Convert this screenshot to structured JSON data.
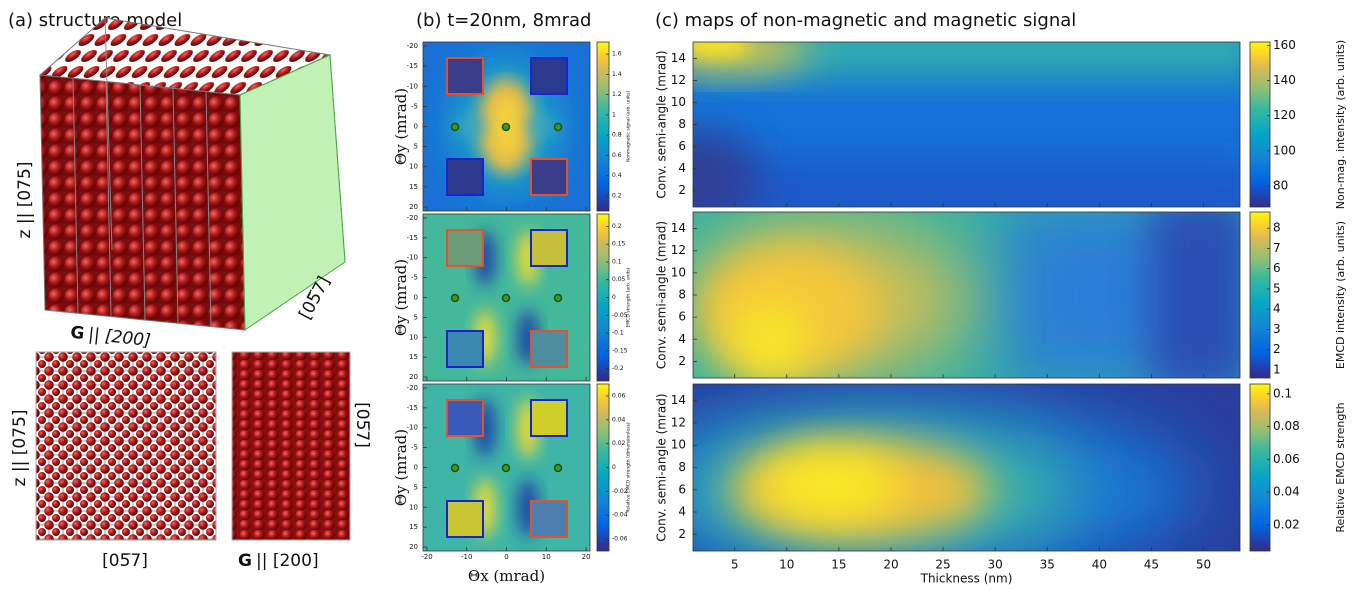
{
  "panel_a": {
    "title": "(a) structure model",
    "cube": {
      "z_label": "z || [075]",
      "g_label_bold": "G",
      "g_label": "|| [200]",
      "face_label": "[05̅7]"
    },
    "view_1": {
      "y_label": "z || [075]",
      "x_label": "[05̅7]"
    },
    "view_2": {
      "y_label": "[05̅7]",
      "x_label_bold": "G",
      "x_label": "|| [200]"
    }
  },
  "panel_b": {
    "title": "(b) t=20nm, 8mrad",
    "x_label": "Θx (mrad)",
    "y_label": "Θy (mrad)",
    "xlim": [
      -21,
      21
    ],
    "ylim": [
      -21,
      21
    ],
    "xticks": [
      -20,
      -10,
      0,
      10,
      20
    ],
    "yticks": [
      -20,
      -15,
      -10,
      -5,
      0,
      5,
      10,
      15,
      20
    ],
    "maps": [
      {
        "colorbar_label": "Nonmagnetic signal (arb. units)",
        "clim": [
          0.05,
          1.72
        ],
        "cticks": [
          0.2,
          0.4,
          0.6,
          0.8,
          1,
          1.2,
          1.4,
          1.6
        ]
      },
      {
        "colorbar_label": "EMCD strength (arb. units)",
        "clim": [
          -0.235,
          0.235
        ],
        "cticks": [
          -0.2,
          -0.15,
          -0.1,
          -0.05,
          0,
          0.05,
          0.1,
          0.15,
          0.2
        ]
      },
      {
        "colorbar_label": "Relative EMCD strength (dimensionless)",
        "clim": [
          -0.07,
          0.07
        ],
        "cticks": [
          -0.06,
          -0.04,
          -0.02,
          0,
          0.02,
          0.04,
          0.06
        ]
      }
    ]
  },
  "panel_c": {
    "title": "(c) maps of non-magnetic and magnetic signal",
    "x_label": "Thickness (nm)",
    "y_label": "Conv. semi-angle (mrad)",
    "xlim": [
      1,
      53.5
    ],
    "ylim": [
      0.5,
      15.5
    ],
    "xticks": [
      5,
      10,
      15,
      20,
      25,
      30,
      35,
      40,
      45,
      50
    ],
    "yticks": [
      2,
      4,
      6,
      8,
      10,
      12,
      14
    ],
    "maps": [
      {
        "colorbar_label": "Non-mag. intensity (arb. units)",
        "clim": [
          68,
          162
        ],
        "cticks": [
          80,
          100,
          120,
          140,
          160
        ]
      },
      {
        "colorbar_label": "EMCD intensity (arb. units)",
        "clim": [
          0.6,
          8.8
        ],
        "cticks": [
          1,
          2,
          3,
          4,
          5,
          6,
          7,
          8
        ]
      },
      {
        "colorbar_label": "Relative EMCD strength",
        "clim": [
          0.004,
          0.106
        ],
        "cticks": [
          0.02,
          0.04,
          0.06,
          0.08,
          0.1
        ]
      }
    ]
  }
}
